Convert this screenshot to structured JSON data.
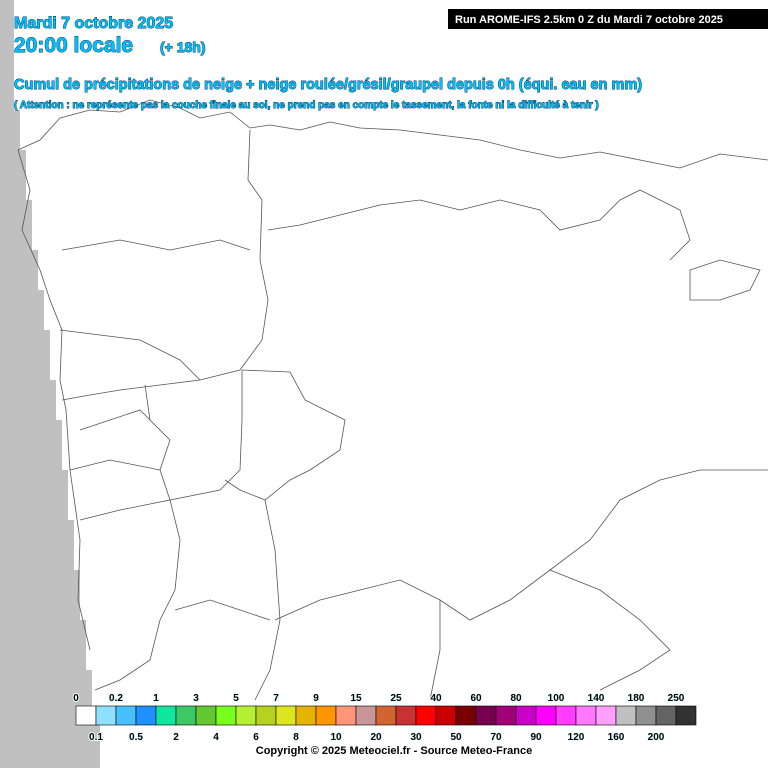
{
  "header": {
    "date": "Mardi 7 octobre 2025",
    "time": "20:00 locale",
    "lead": "(+ 18h)",
    "run": "Run AROME-IFS 2.5km 0 Z du Mardi 7 octobre 2025",
    "title": "Cumul de précipitations de neige + neige roulée/grésil/graupel depuis 0h (équi. eau en mm)",
    "note": "( Attention : ne représente pas la couche finale au sol, ne prend pas en compte le tassement, la fonte ni la difficulté à tenir )"
  },
  "legend": {
    "levels": [
      {
        "value": 0,
        "color": "#ffffff"
      },
      {
        "value": 0.1,
        "color": "#8ee0ff"
      },
      {
        "value": 0.2,
        "color": "#46c0ff"
      },
      {
        "value": 0.5,
        "color": "#1e90ff"
      },
      {
        "value": 1,
        "color": "#10e6a0"
      },
      {
        "value": 2,
        "color": "#3cc864"
      },
      {
        "value": 3,
        "color": "#64c832"
      },
      {
        "value": 4,
        "color": "#78ff1e"
      },
      {
        "value": 5,
        "color": "#b4f032"
      },
      {
        "value": 6,
        "color": "#b4d21e"
      },
      {
        "value": 7,
        "color": "#dce61e"
      },
      {
        "value": 8,
        "color": "#e6b400"
      },
      {
        "value": 9,
        "color": "#ff9600"
      },
      {
        "value": 10,
        "color": "#ff9678"
      },
      {
        "value": 15,
        "color": "#c89696"
      },
      {
        "value": 20,
        "color": "#d26432"
      },
      {
        "value": 25,
        "color": "#c83232"
      },
      {
        "value": 30,
        "color": "#ff0000"
      },
      {
        "value": 40,
        "color": "#c80000"
      },
      {
        "value": 50,
        "color": "#780000"
      },
      {
        "value": 60,
        "color": "#780050"
      },
      {
        "value": 70,
        "color": "#a00078"
      },
      {
        "value": 80,
        "color": "#c800c8"
      },
      {
        "value": 90,
        "color": "#ff00ff"
      },
      {
        "value": 100,
        "color": "#ff3cff"
      },
      {
        "value": 120,
        "color": "#ff78ff"
      },
      {
        "value": 140,
        "color": "#ffa0ff"
      },
      {
        "value": 160,
        "color": "#c0c0c0"
      },
      {
        "value": 180,
        "color": "#909090"
      },
      {
        "value": 200,
        "color": "#646464"
      },
      {
        "value": 250,
        "color": "#323232"
      }
    ]
  },
  "footer": {
    "copyright": "Copyright © 2025 Meteociel.fr - Source Meteo-France"
  }
}
